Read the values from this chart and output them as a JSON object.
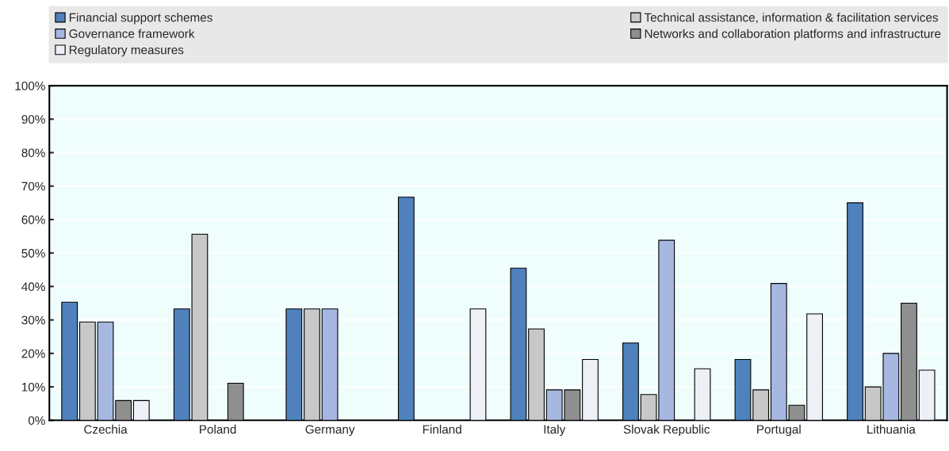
{
  "chart_data": {
    "type": "bar",
    "categories": [
      "Czechia",
      "Poland",
      "Germany",
      "Finland",
      "Italy",
      "Slovak Republic",
      "Portugal",
      "Lithuania"
    ],
    "series": [
      {
        "name": "Financial support schemes",
        "color": "#4f81bd",
        "values": [
          35.3,
          33.3,
          33.3,
          66.7,
          45.5,
          23.1,
          18.2,
          65
        ]
      },
      {
        "name": "Technical assistance, information & facilitation services",
        "color": "#c8c8c8",
        "values": [
          29.4,
          55.6,
          33.3,
          null,
          27.3,
          7.7,
          9.1,
          10
        ]
      },
      {
        "name": "Governance framework",
        "color": "#a6b8e2",
        "values": [
          29.4,
          null,
          33.3,
          null,
          9.1,
          53.8,
          40.9,
          20
        ]
      },
      {
        "name": "Networks and collaboration platforms and infrastructure",
        "color": "#8f8f8f",
        "values": [
          5.9,
          11.1,
          null,
          null,
          9.1,
          null,
          4.5,
          35
        ]
      },
      {
        "name": "Regulatory measures",
        "color": "#eef0f8",
        "values": [
          5.9,
          null,
          null,
          33.3,
          18.2,
          15.4,
          31.8,
          15
        ]
      }
    ],
    "ylim": [
      0,
      100
    ],
    "yticks": [
      {
        "value": 0,
        "label": "0%"
      },
      {
        "value": 10,
        "label": "10%"
      },
      {
        "value": 20,
        "label": "20%"
      },
      {
        "value": 30,
        "label": "30%"
      },
      {
        "value": 40,
        "label": "40%"
      },
      {
        "value": 50,
        "label": "50%"
      },
      {
        "value": 60,
        "label": "60%"
      },
      {
        "value": 70,
        "label": "70%"
      },
      {
        "value": 80,
        "label": "80%"
      },
      {
        "value": 90,
        "label": "90%"
      },
      {
        "value": 100,
        "label": "100%"
      }
    ],
    "grid": "y",
    "legend": "top"
  }
}
